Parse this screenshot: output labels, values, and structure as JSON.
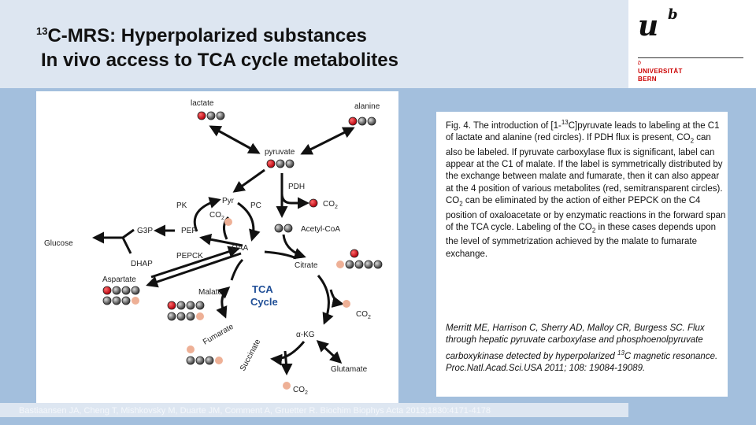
{
  "header": {
    "title_sup": "13",
    "title_line1": "C-MRS: Hyperpolarized substances",
    "title_line2": "In vivo access to TCA cycle metabolites"
  },
  "logo": {
    "mark_u": "u",
    "mark_b": "b",
    "small_b": "b",
    "line1": "UNIVERSITÄT",
    "line2": "BERN"
  },
  "diagram": {
    "labels": {
      "lactate": "lactate",
      "alanine": "alanine",
      "pyruvate": "pyruvate",
      "pdh": "PDH",
      "co2": "CO",
      "co2_sub": "2",
      "acetyl_coa": "Acetyl-CoA",
      "pyr": "Pyr",
      "pk": "PK",
      "pc": "PC",
      "pep": "PEP",
      "g3p": "G3P",
      "glucose": "Glucose",
      "dhap": "DHAP",
      "pepck": "PEPCK",
      "oaa": "OAA",
      "citrate": "Citrate",
      "aspartate": "Aspartate",
      "malate": "Malate",
      "tca1": "TCA",
      "tca2": "Cycle",
      "fumarate": "Fumarate",
      "akg": "α-KG",
      "succinate": "Succinate",
      "glutamate": "Glutamate"
    },
    "colors": {
      "label_red": "#d7121c",
      "label_semi": "#eeb096",
      "carbon_gray": "#555555",
      "tca_blue": "#1f4e96"
    }
  },
  "caption": {
    "p1": "Fig. 4. The introduction of [1-",
    "p1_sup": "13",
    "p2": "C]pyruvate leads to labeling at the C1 of lactate and alanine (red circles). If PDH flux is present, CO",
    "p2_sub": "2",
    "p3": " can also be labeled. If pyruvate carboxylase flux is significant, label can appear at the C1 of malate. If the label is symmetrically distributed by the exchange between malate and fumarate, then it can also appear at the 4 position of various metabolites (red, semitransparent circles). CO",
    "p3_sub": "2",
    "p4": " can be eliminated by the action of either PEPCK on the C4 position of oxaloacetate or by enzymatic reactions in the forward span of the TCA cycle. Labeling of the CO",
    "p4_sub": "2",
    "p5": " in these cases depends upon the level of symmetrization achieved by the malate to fumarate exchange."
  },
  "reference": {
    "r1": "Merritt ME, Harrison C, Sherry AD, Malloy CR, Burgess SC. Flux through hepatic pyruvate carboxylase and phosphoenolpyruvate carboxykinase detected by hyperpolarized ",
    "r1_sup": "13",
    "r2": "C magnetic resonance.",
    "r3": "Proc.Natl.Acad.Sci.USA 2011; 108: 19084-19089."
  },
  "footer": {
    "citation": "Bastiaansen JA, Cheng T, Mishkovsky M, Duarte JM, Comment A, Gruetter R. Biochim Biophys Acta 2013;1830:4171-4178"
  }
}
